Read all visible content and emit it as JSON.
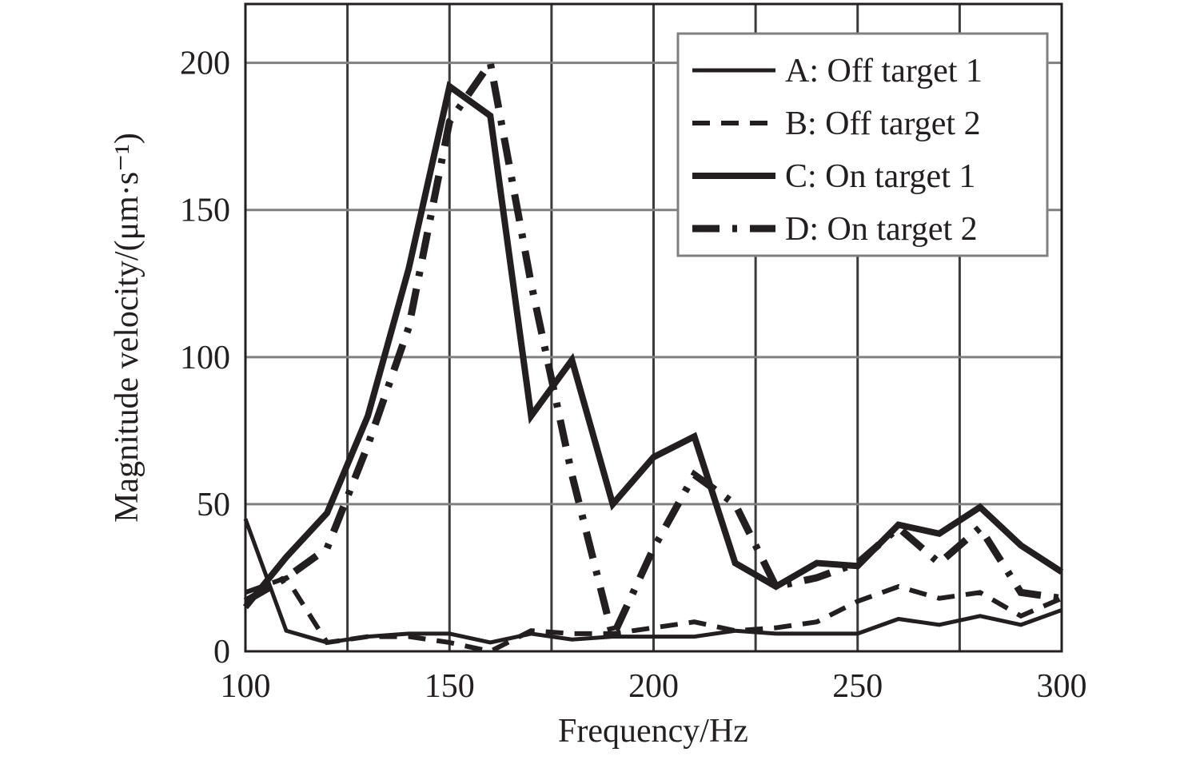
{
  "chart_data": {
    "type": "line",
    "title": "",
    "xlabel": "Frequency/Hz",
    "ylabel": "Magnitude velocity/(μm·s⁻¹)",
    "xlim": [
      100,
      300
    ],
    "ylim": [
      0,
      220
    ],
    "xticks": [
      100,
      150,
      200,
      250,
      300
    ],
    "yticks": [
      0,
      50,
      100,
      150,
      200
    ],
    "grid": true,
    "grid_step_x": 25,
    "legend_position": "top-right",
    "x": [
      100,
      110,
      120,
      130,
      140,
      150,
      160,
      170,
      180,
      190,
      200,
      210,
      220,
      230,
      240,
      250,
      260,
      270,
      280,
      290,
      300
    ],
    "series": [
      {
        "name": "A: Off target 1",
        "style": "thin-solid",
        "values": [
          45,
          7,
          3,
          5,
          6,
          6,
          3,
          6,
          4,
          5,
          5,
          5,
          7,
          6,
          6,
          6,
          11,
          9,
          12,
          9,
          14
        ]
      },
      {
        "name": "B: Off target 2",
        "style": "dashed",
        "values": [
          20,
          25,
          3,
          5,
          5,
          3,
          0,
          7,
          6,
          6,
          8,
          10,
          7,
          8,
          10,
          17,
          22,
          18,
          20,
          12,
          18
        ]
      },
      {
        "name": "C: On target 1",
        "style": "thick-solid",
        "values": [
          15,
          32,
          47,
          80,
          130,
          192,
          182,
          80,
          99,
          50,
          66,
          73,
          30,
          22,
          30,
          29,
          43,
          40,
          49,
          36,
          27
        ]
      },
      {
        "name": "D: On target 2",
        "style": "dash-dot",
        "values": [
          17,
          25,
          35,
          70,
          110,
          180,
          200,
          125,
          60,
          5,
          35,
          60,
          50,
          22,
          25,
          30,
          42,
          30,
          42,
          20,
          18
        ]
      }
    ],
    "colors": {
      "line": "#231f20",
      "grid": "#808080"
    }
  }
}
